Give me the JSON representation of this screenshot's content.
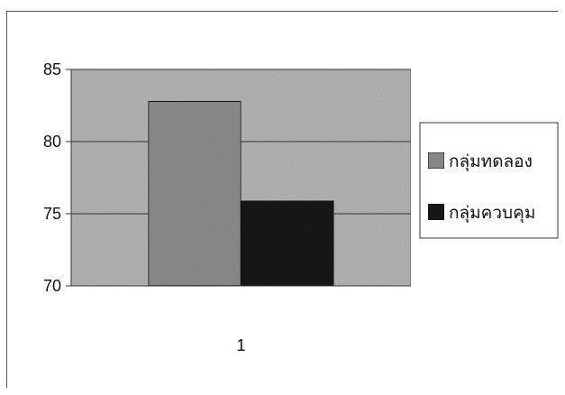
{
  "chart_data": {
    "type": "bar",
    "categories": [
      "1"
    ],
    "series": [
      {
        "name": "กลุ่มทดลอง",
        "values": [
          82.8
        ],
        "color": "#8c8c8c"
      },
      {
        "name": "กลุ่มควบคุม",
        "values": [
          75.9
        ],
        "color": "#1a1a1a"
      }
    ],
    "ylim": [
      70,
      85
    ],
    "yticks": [
      "70",
      "75",
      "80",
      "85"
    ],
    "plot_background": "#b4b4b4",
    "grid": true,
    "legend_position": "right"
  }
}
